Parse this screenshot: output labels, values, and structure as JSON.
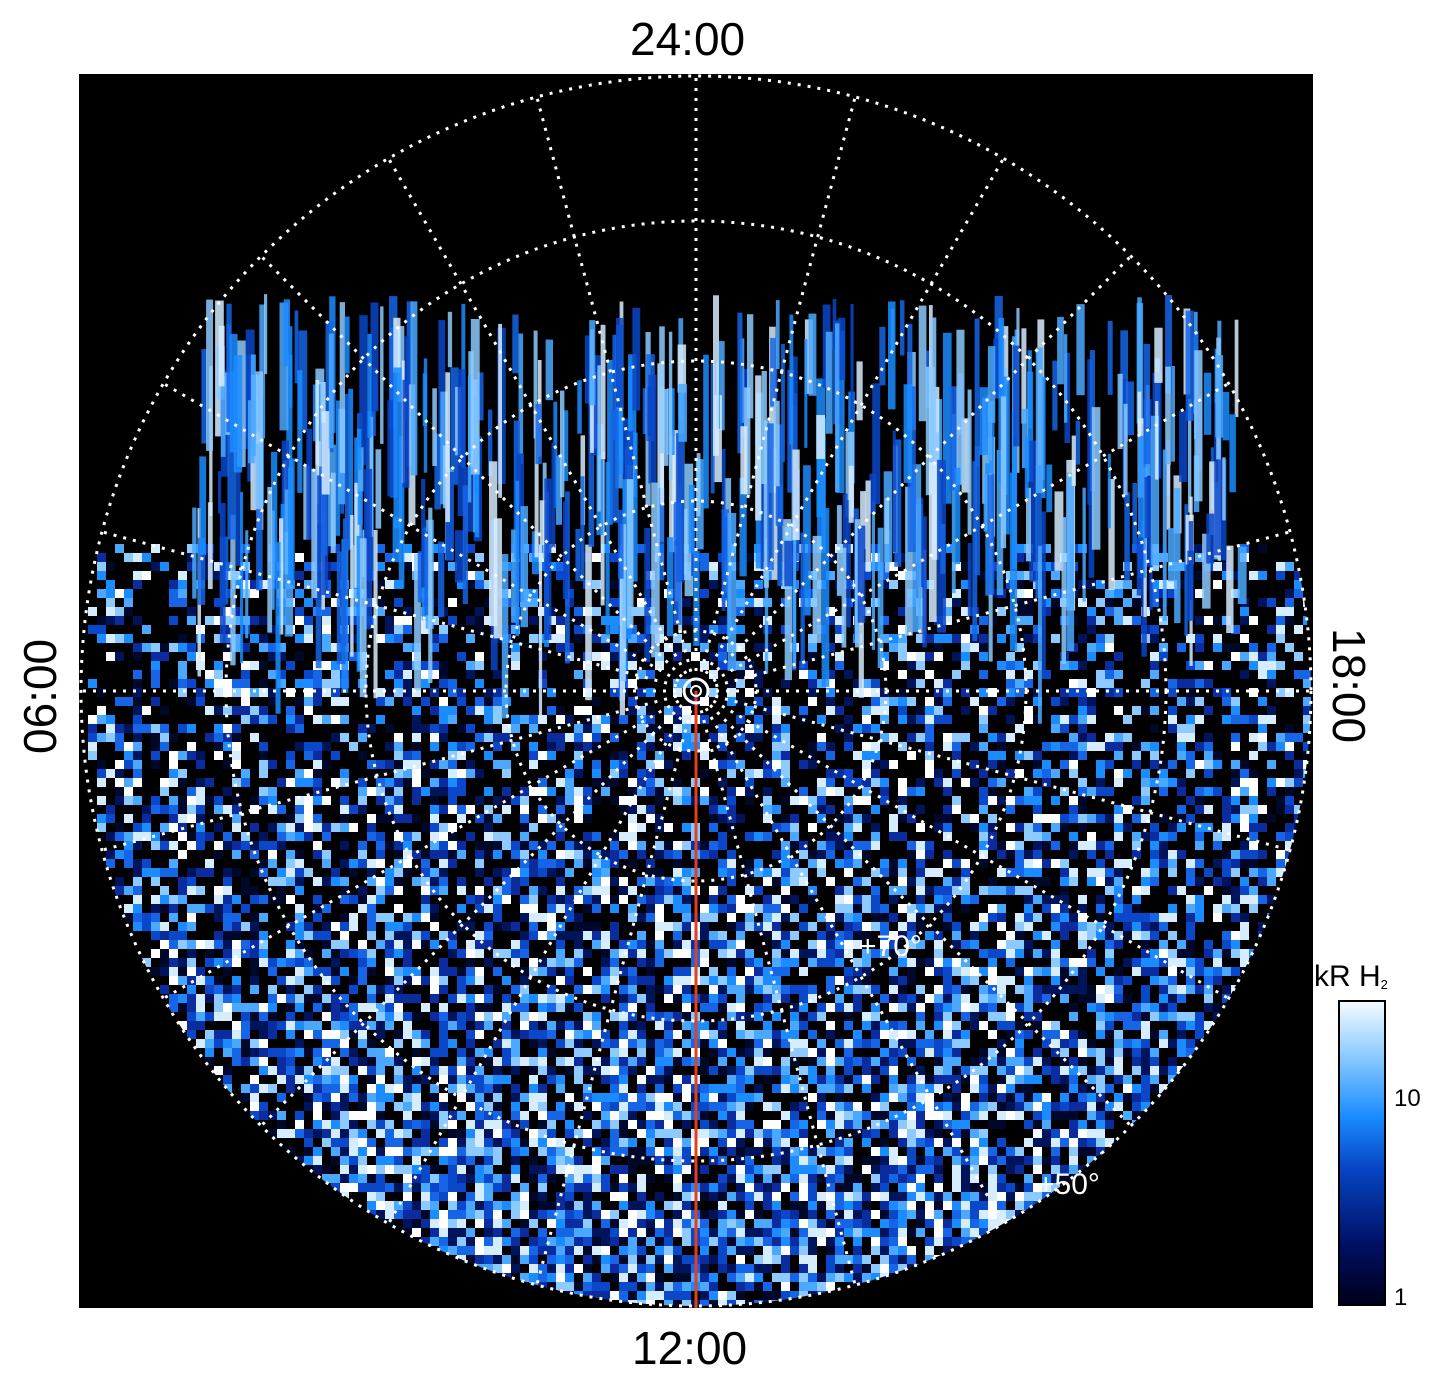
{
  "image": {
    "labels": {
      "top": "24:00",
      "bottom": "12:00",
      "left": "06:00",
      "right": "18:00",
      "lat_70": "+70°",
      "lat_50": "+50°"
    },
    "colorbar": {
      "title": "kR H",
      "title_sub": "2",
      "ticks": [
        "10",
        "1"
      ],
      "colors": {
        "low": "#00001a",
        "mid": "#1a8cff",
        "high": "#f4fbff"
      }
    },
    "colors": {
      "background": "#000000",
      "grid": "#ffffff",
      "meridian_line": "#e2401c",
      "aurora": "#1a7fff"
    }
  }
}
